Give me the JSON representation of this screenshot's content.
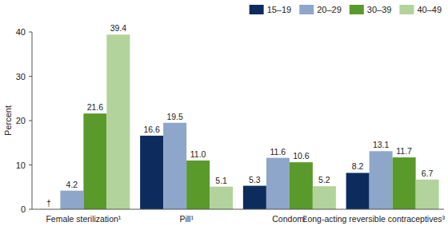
{
  "chart_data": {
    "type": "bar",
    "y_label": "Percent",
    "categories": [
      "Female sterilization¹",
      "Pill¹",
      "Condom²",
      "Long-acting reversible contraceptives³"
    ],
    "series": [
      {
        "name": "15–19",
        "color": "#0d2c5d",
        "values": [
          null,
          16.6,
          5.3,
          8.2
        ],
        "value_labels": [
          "†",
          "16.6",
          "5.3",
          "8.2"
        ]
      },
      {
        "name": "20–29",
        "color": "#8ea6c9",
        "values": [
          4.2,
          19.5,
          11.6,
          13.1
        ],
        "value_labels": [
          "4.2",
          "19.5",
          "11.6",
          "13.1"
        ]
      },
      {
        "name": "30–39",
        "color": "#5a9a2b",
        "values": [
          21.6,
          11,
          10.6,
          11.7
        ],
        "value_labels": [
          "21.6",
          "11.0",
          "10.6",
          "11.7"
        ]
      },
      {
        "name": "40–49",
        "color": "#b2d39b",
        "values": [
          39.4,
          5.1,
          5.2,
          6.7
        ],
        "value_labels": [
          "39.4",
          "5.1",
          "5.2",
          "6.7"
        ]
      }
    ],
    "ylim": [
      0,
      40
    ],
    "yticks": [
      0,
      10,
      20,
      30,
      40
    ],
    "grid": false,
    "legend": "top-right",
    "data_labels": true
  }
}
